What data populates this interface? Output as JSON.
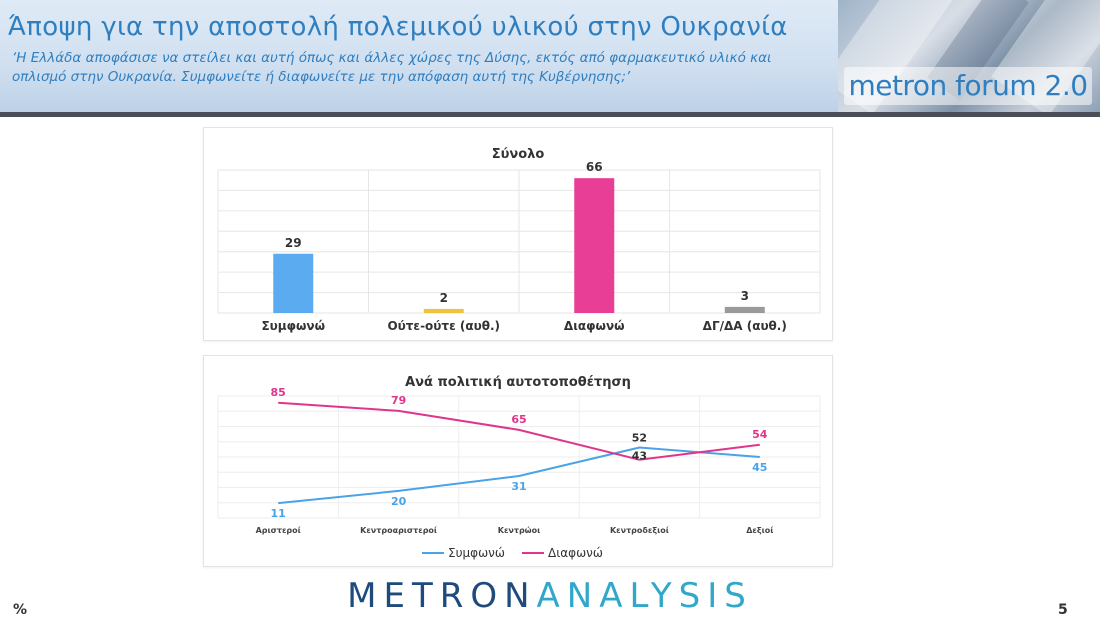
{
  "header": {
    "title": "Άποψη για την αποστολή πολεμικού υλικού στην Ουκρανία",
    "question": "‘Η Ελλάδα αποφάσισε να στείλει και αυτή όπως και άλλες χώρες της Δύσης, εκτός από φαρμακευτικό υλικό και οπλισμό στην Ουκρανία. Συμφωνείτε ή διαφωνείτε με την απόφαση αυτή της Κυβέρνησης;’",
    "brand": "metron forum 2.0"
  },
  "footer": {
    "logo_part1": "METRON",
    "logo_part2": "ANALYSIS",
    "unit": "%",
    "page_number": "5"
  },
  "chart_data": [
    {
      "type": "bar",
      "title": "Σύνολο",
      "categories": [
        "Συμφωνώ",
        "Ούτε-ούτε (αυθ.)",
        "Διαφωνώ",
        "ΔΓ/ΔΑ (αυθ.)"
      ],
      "values": [
        29,
        2,
        66,
        3
      ],
      "colors": [
        "#5aabf0",
        "#f1c240",
        "#e83e96",
        "#9a9a9a"
      ],
      "ylim": [
        0,
        70
      ],
      "grid": true,
      "legend": "none"
    },
    {
      "type": "line",
      "title": "Ανά πολιτική αυτοτοποθέτηση",
      "categories": [
        "Αριστεροί",
        "Κεντροαριστεροί",
        "Κεντρώοι",
        "Κεντροδεξιοί",
        "Δεξιοί"
      ],
      "series": [
        {
          "name": "Συμφωνώ",
          "values": [
            11,
            20,
            31,
            52,
            45
          ],
          "color": "#4aa3e6"
        },
        {
          "name": "Διαφωνώ",
          "values": [
            85,
            79,
            65,
            43,
            54
          ],
          "color": "#e0358c"
        }
      ],
      "ylim": [
        0,
        90
      ],
      "grid": true,
      "legend": "bottom"
    }
  ]
}
